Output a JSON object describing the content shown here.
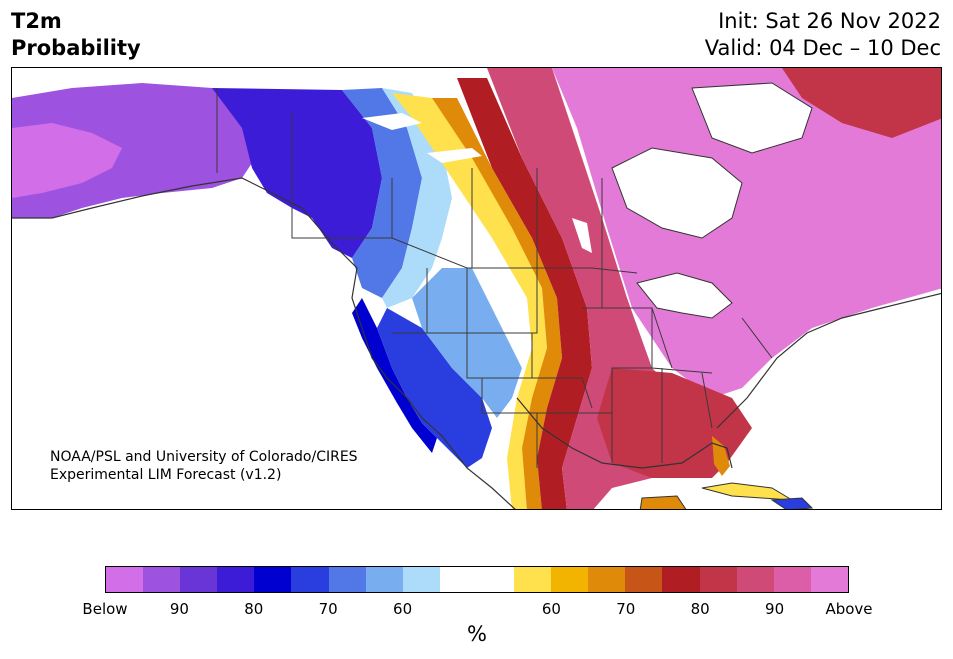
{
  "title": {
    "line1": "T2m",
    "line2": "Probability"
  },
  "header": {
    "init": "Init: Sat 26 Nov 2022",
    "valid": "Valid: 04 Dec – 10 Dec"
  },
  "credit": {
    "line1": "NOAA/PSL and University of Colorado/CIRES",
    "line2": "Experimental LIM Forecast (v1.2)"
  },
  "colorbar": {
    "unit": "%",
    "labels": [
      "Below",
      "90",
      "80",
      "70",
      "60",
      "60",
      "70",
      "80",
      "90",
      "Above"
    ],
    "colors": [
      "#d26fe8",
      "#9d52e0",
      "#6a35d6",
      "#3c1cd6",
      "#0000d0",
      "#2a3ee0",
      "#5277e6",
      "#78aef0",
      "#acdcfa",
      "#ffffff",
      "#ffffff",
      "#ffe04d",
      "#f2b400",
      "#e08a0a",
      "#c85518",
      "#b01e23",
      "#c23448",
      "#d04a78",
      "#dc5ea8",
      "#e47ad8"
    ]
  },
  "map": {
    "colors": {
      "below_90": "#9d52e0",
      "below_80": "#3c1cd6",
      "below_70": "#2a3ee0",
      "below_60": "#78aef0",
      "near_normal": "#ffffff",
      "above_60": "#ffe04d",
      "above_70": "#e08a0a",
      "above_80": "#b01e23",
      "above_90": "#d04a78",
      "above_max": "#e47ad8"
    }
  }
}
